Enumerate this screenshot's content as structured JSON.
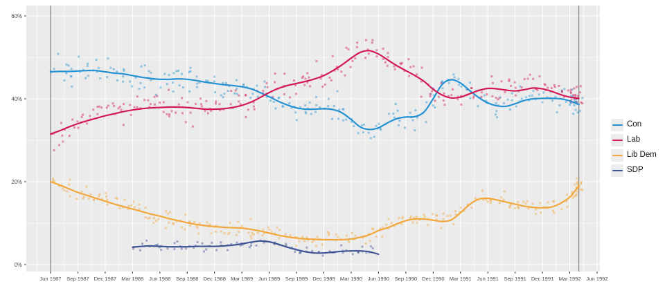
{
  "chart_data": {
    "type": "scatter",
    "subtype": "poll-scatter-with-loess-smooth",
    "title": "",
    "xlabel": "",
    "ylabel": "",
    "x_tick_labels": [
      "Jun 1987",
      "Sep 1987",
      "Dec 1987",
      "Mar 1988",
      "Jun 1988",
      "Sep 1988",
      "Dec 1988",
      "Mar 1989",
      "Jun 1989",
      "Sep 1989",
      "Dec 1989",
      "Mar 1990",
      "Jun 1990",
      "Sep 1990",
      "Dec 1990",
      "Mar 1991",
      "Jun 1991",
      "Sep 1991",
      "Dec 1991",
      "Mar 1992",
      "Jun 1992"
    ],
    "y_tick_labels": [
      "0%",
      "20%",
      "40%",
      "60%"
    ],
    "y_ticks": [
      0,
      20,
      40,
      60
    ],
    "ylim": [
      -1.7,
      62.5
    ],
    "x_months_total": 60,
    "grid": "on",
    "panel_background": "#EBEBEB",
    "grid_color": "#FFFFFF",
    "axis_text_color": "#4D4D4D",
    "reference_line_color": "#6A6A6A",
    "reference_lines_months": [
      0,
      58
    ],
    "legend_position": "right",
    "series": [
      {
        "name": "Con",
        "color": "#2492D2",
        "start_month": 0,
        "trend": [
          46.5,
          46.6,
          46.6,
          46.7,
          46.8,
          46.8,
          46.5,
          46.2,
          46.0,
          45.6,
          45.2,
          44.9,
          44.7,
          44.7,
          44.8,
          44.7,
          44.4,
          44.0,
          43.7,
          43.4,
          43.2,
          42.9,
          42.4,
          41.5,
          40.5,
          39.4,
          38.5,
          37.8,
          37.5,
          37.5,
          37.6,
          37.4,
          36.6,
          35.0,
          33.2,
          32.6,
          33.0,
          34.2,
          35.2,
          35.6,
          35.7,
          36.8,
          40.0,
          43.5,
          44.6,
          43.8,
          42.0,
          40.3,
          39.0,
          38.3,
          38.2,
          38.8,
          39.6,
          40.0,
          40.1,
          40.1,
          40.0,
          39.5,
          38.6
        ]
      },
      {
        "name": "Lab",
        "color": "#D21955",
        "start_month": 0,
        "trend": [
          31.5,
          32.3,
          33.2,
          34.0,
          34.7,
          35.3,
          35.9,
          36.4,
          36.9,
          37.3,
          37.6,
          37.8,
          37.9,
          38.0,
          38.0,
          37.9,
          37.7,
          37.5,
          37.5,
          37.6,
          37.9,
          38.4,
          39.2,
          40.3,
          41.5,
          42.5,
          43.2,
          43.7,
          44.2,
          44.8,
          45.6,
          46.8,
          48.2,
          49.8,
          51.2,
          51.6,
          50.8,
          49.4,
          48.0,
          46.8,
          45.6,
          44.2,
          42.3,
          40.9,
          40.2,
          40.4,
          41.2,
          42.0,
          42.5,
          42.4,
          42.1,
          41.9,
          42.2,
          42.6,
          42.4,
          41.8,
          41.0,
          40.4,
          40.1
        ]
      },
      {
        "name": "Lib Dem",
        "color": "#F2A73B",
        "start_month": 0,
        "trend": [
          20.0,
          19.2,
          18.3,
          17.4,
          16.7,
          16.0,
          15.3,
          14.6,
          14.0,
          13.4,
          12.8,
          12.2,
          11.7,
          11.1,
          10.6,
          10.1,
          9.7,
          9.4,
          9.2,
          9.0,
          8.9,
          8.8,
          8.5,
          8.1,
          7.6,
          7.1,
          6.7,
          6.4,
          6.2,
          6.1,
          6.0,
          6.0,
          6.0,
          6.2,
          6.6,
          7.2,
          8.2,
          8.9,
          9.8,
          10.6,
          11.0,
          11.0,
          10.7,
          10.4,
          10.8,
          12.5,
          14.5,
          15.8,
          16.0,
          15.6,
          15.1,
          14.6,
          14.1,
          13.8,
          13.7,
          13.9,
          14.8,
          16.3,
          19.0
        ]
      },
      {
        "name": "SDP",
        "color": "#3E5494",
        "start_month": 9,
        "trend": [
          4.2,
          4.4,
          4.5,
          4.4,
          4.3,
          4.3,
          4.3,
          4.4,
          4.4,
          4.4,
          4.5,
          4.7,
          5.0,
          5.4,
          5.7,
          5.5,
          4.9,
          4.2,
          3.6,
          3.1,
          2.8,
          2.8,
          3.0,
          3.2,
          3.3,
          3.3,
          3.1,
          2.5
        ]
      }
    ],
    "scatter": {
      "seed": 1987,
      "point_opacity": 0.45,
      "point_size": 3,
      "points_per_month": {
        "Con": 4,
        "Lab": 4,
        "Lib Dem": 4,
        "SDP": 3
      },
      "jitter": {
        "Con": 2.7,
        "Lab": 2.9,
        "Lib Dem": 1.8,
        "SDP": 1.0
      },
      "end_cluster": {
        "months": [
          57.1,
          58.4
        ],
        "extra_points": 16,
        "applies_to": [
          "Con",
          "Lab",
          "Lib Dem"
        ]
      }
    }
  },
  "legend": {
    "items": [
      {
        "label": "Con"
      },
      {
        "label": "Lab"
      },
      {
        "label": "Lib Dem"
      },
      {
        "label": "SDP"
      }
    ]
  }
}
